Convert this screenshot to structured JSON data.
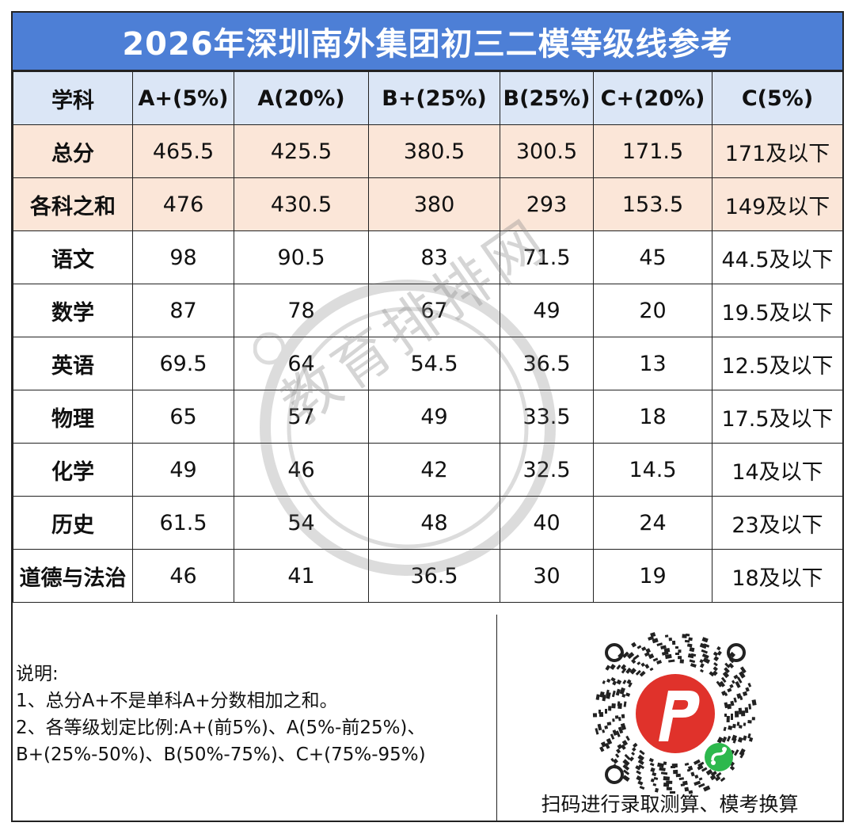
{
  "title": "2026年深圳南外集团初三二模等级线参考",
  "table": {
    "headers": [
      "学科",
      "A+(5%)",
      "A(20%)",
      "B+(25%)",
      "B(25%)",
      "C+(20%)",
      "C(5%)"
    ],
    "rows": [
      [
        "总分",
        "465.5",
        "425.5",
        "380.5",
        "300.5",
        "171.5",
        "171及以下"
      ],
      [
        "各科之和",
        "476",
        "430.5",
        "380",
        "293",
        "153.5",
        "149及以下"
      ],
      [
        "语文",
        "98",
        "90.5",
        "83",
        "71.5",
        "45",
        "44.5及以下"
      ],
      [
        "数学",
        "87",
        "78",
        "67",
        "49",
        "20",
        "19.5及以下"
      ],
      [
        "英语",
        "69.5",
        "64",
        "54.5",
        "36.5",
        "13",
        "12.5及以下"
      ],
      [
        "物理",
        "65",
        "57",
        "49",
        "33.5",
        "18",
        "17.5及以下"
      ],
      [
        "化学",
        "49",
        "46",
        "42",
        "32.5",
        "14.5",
        "14及以下"
      ],
      [
        "历史",
        "61.5",
        "54",
        "48",
        "40",
        "24",
        "23及以下"
      ],
      [
        "道德与法治",
        "46",
        "41",
        "36.5",
        "30",
        "19",
        "18及以下"
      ]
    ]
  },
  "notes": {
    "heading": "说明:",
    "line1": "1、总分A+不是单科A+分数相加之和。",
    "line2": "2、各等级划定比例:A+(前5%)、A(5%-前25%)、",
    "line3": "B+(25%-50%)、B(50%-75%)、C+(75%-95%)"
  },
  "qr_caption": "扫码进行录取测算、模考换算",
  "watermark": "教育排排网",
  "colors": {
    "title_bg": "#4d7fd6",
    "header_bg": "#dbe6f6",
    "highlight_bg": "#fbe6d8",
    "logo_red": "#e0322b"
  }
}
